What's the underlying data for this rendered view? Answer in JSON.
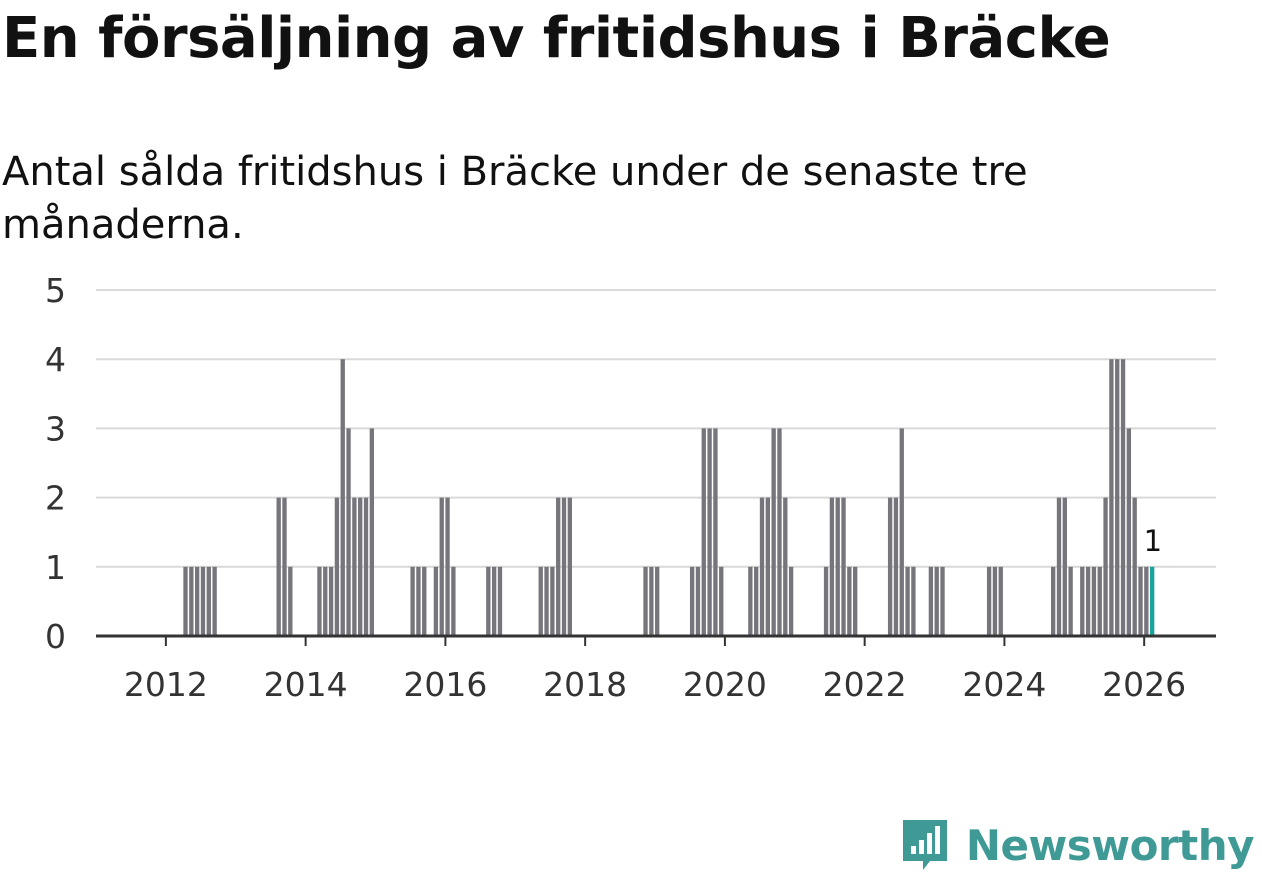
{
  "title": "En försäljning av fritidshus i Bräcke",
  "subtitle": "Antal sålda fritidshus i Bräcke under de senaste tre månaderna.",
  "brand": {
    "name": "Newsworthy",
    "logo_icon": "newsworthy-chart-icon"
  },
  "colors": {
    "bar": "#75757b",
    "highlight": "#1aa39c",
    "grid": "#d9d9d9",
    "axis": "#333333",
    "brand": "#3f9a95"
  },
  "chart_data": {
    "type": "bar",
    "title": "En försäljning av fritidshus i Bräcke",
    "subtitle": "Antal sålda fritidshus i Bräcke under de senaste tre månaderna.",
    "x_unit": "month",
    "x_start": "2011-01",
    "x_end": "2026-02",
    "xlabel": "",
    "ylabel": "",
    "x_ticks": [
      "2012",
      "2014",
      "2016",
      "2018",
      "2020",
      "2022",
      "2024",
      "2026"
    ],
    "y_ticks": [
      0,
      1,
      2,
      3,
      4,
      5
    ],
    "ylim": [
      0,
      5
    ],
    "grid": true,
    "highlight": {
      "x": "2026-02",
      "value": 1,
      "label": "1"
    },
    "series": [
      {
        "values": [
          {
            "x": "2012-04",
            "y": 1
          },
          {
            "x": "2012-05",
            "y": 1
          },
          {
            "x": "2012-06",
            "y": 1
          },
          {
            "x": "2012-07",
            "y": 1
          },
          {
            "x": "2012-08",
            "y": 1
          },
          {
            "x": "2012-09",
            "y": 1
          },
          {
            "x": "2013-08",
            "y": 2
          },
          {
            "x": "2013-09",
            "y": 2
          },
          {
            "x": "2013-10",
            "y": 1
          },
          {
            "x": "2014-03",
            "y": 1
          },
          {
            "x": "2014-04",
            "y": 1
          },
          {
            "x": "2014-05",
            "y": 1
          },
          {
            "x": "2014-06",
            "y": 2
          },
          {
            "x": "2014-07",
            "y": 4
          },
          {
            "x": "2014-08",
            "y": 3
          },
          {
            "x": "2014-09",
            "y": 2
          },
          {
            "x": "2014-10",
            "y": 2
          },
          {
            "x": "2014-11",
            "y": 2
          },
          {
            "x": "2014-12",
            "y": 3
          },
          {
            "x": "2015-07",
            "y": 1
          },
          {
            "x": "2015-08",
            "y": 1
          },
          {
            "x": "2015-09",
            "y": 1
          },
          {
            "x": "2015-11",
            "y": 1
          },
          {
            "x": "2015-12",
            "y": 2
          },
          {
            "x": "2016-01",
            "y": 2
          },
          {
            "x": "2016-02",
            "y": 1
          },
          {
            "x": "2016-08",
            "y": 1
          },
          {
            "x": "2016-09",
            "y": 1
          },
          {
            "x": "2016-10",
            "y": 1
          },
          {
            "x": "2017-05",
            "y": 1
          },
          {
            "x": "2017-06",
            "y": 1
          },
          {
            "x": "2017-07",
            "y": 1
          },
          {
            "x": "2017-08",
            "y": 2
          },
          {
            "x": "2017-09",
            "y": 2
          },
          {
            "x": "2017-10",
            "y": 2
          },
          {
            "x": "2018-11",
            "y": 1
          },
          {
            "x": "2018-12",
            "y": 1
          },
          {
            "x": "2019-01",
            "y": 1
          },
          {
            "x": "2019-07",
            "y": 1
          },
          {
            "x": "2019-08",
            "y": 1
          },
          {
            "x": "2019-09",
            "y": 3
          },
          {
            "x": "2019-10",
            "y": 3
          },
          {
            "x": "2019-11",
            "y": 3
          },
          {
            "x": "2019-12",
            "y": 1
          },
          {
            "x": "2020-05",
            "y": 1
          },
          {
            "x": "2020-06",
            "y": 1
          },
          {
            "x": "2020-07",
            "y": 2
          },
          {
            "x": "2020-08",
            "y": 2
          },
          {
            "x": "2020-09",
            "y": 3
          },
          {
            "x": "2020-10",
            "y": 3
          },
          {
            "x": "2020-11",
            "y": 2
          },
          {
            "x": "2020-12",
            "y": 1
          },
          {
            "x": "2021-06",
            "y": 1
          },
          {
            "x": "2021-07",
            "y": 2
          },
          {
            "x": "2021-08",
            "y": 2
          },
          {
            "x": "2021-09",
            "y": 2
          },
          {
            "x": "2021-10",
            "y": 1
          },
          {
            "x": "2021-11",
            "y": 1
          },
          {
            "x": "2022-05",
            "y": 2
          },
          {
            "x": "2022-06",
            "y": 2
          },
          {
            "x": "2022-07",
            "y": 3
          },
          {
            "x": "2022-08",
            "y": 1
          },
          {
            "x": "2022-09",
            "y": 1
          },
          {
            "x": "2022-12",
            "y": 1
          },
          {
            "x": "2023-01",
            "y": 1
          },
          {
            "x": "2023-02",
            "y": 1
          },
          {
            "x": "2023-10",
            "y": 1
          },
          {
            "x": "2023-11",
            "y": 1
          },
          {
            "x": "2023-12",
            "y": 1
          },
          {
            "x": "2024-09",
            "y": 1
          },
          {
            "x": "2024-10",
            "y": 2
          },
          {
            "x": "2024-11",
            "y": 2
          },
          {
            "x": "2024-12",
            "y": 1
          },
          {
            "x": "2025-02",
            "y": 1
          },
          {
            "x": "2025-03",
            "y": 1
          },
          {
            "x": "2025-04",
            "y": 1
          },
          {
            "x": "2025-05",
            "y": 1
          },
          {
            "x": "2025-06",
            "y": 2
          },
          {
            "x": "2025-07",
            "y": 4
          },
          {
            "x": "2025-08",
            "y": 4
          },
          {
            "x": "2025-09",
            "y": 4
          },
          {
            "x": "2025-10",
            "y": 3
          },
          {
            "x": "2025-11",
            "y": 2
          },
          {
            "x": "2025-12",
            "y": 1
          },
          {
            "x": "2026-01",
            "y": 1
          },
          {
            "x": "2026-02",
            "y": 1
          }
        ]
      }
    ]
  }
}
